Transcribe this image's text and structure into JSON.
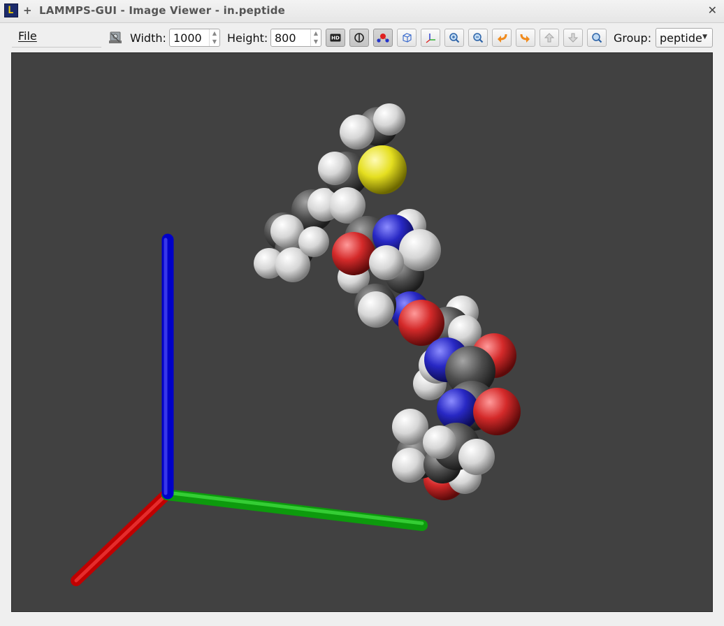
{
  "window": {
    "title": "LAMMPS-GUI - Image Viewer - in.peptide",
    "app_icon": "lammps-app-icon",
    "close_symbol": "✕"
  },
  "menu": {
    "file_label": "File"
  },
  "toolbar": {
    "width_label": "Width:",
    "width_value": "1000",
    "height_label": "Height:",
    "height_value": "800",
    "group_label": "Group:",
    "group_value": "peptide",
    "buttons": [
      "save-image-icon",
      "hd-quality-icon",
      "toggle-ssao-icon",
      "toggle-vdw-icon",
      "toggle-box-icon",
      "toggle-axes-icon",
      "zoom-in-icon",
      "zoom-out-icon",
      "rotate-left-icon",
      "rotate-right-icon",
      "rotate-up-icon",
      "rotate-down-icon",
      "reset-view-icon"
    ]
  },
  "scene": {
    "background": "#414141",
    "axes": {
      "x_color": "#dd0000",
      "y_color": "#00bb00",
      "z_color": "#0000dd"
    },
    "atom_colors": {
      "carbon": "#505050",
      "hydrogen": "#e6e6e6",
      "oxygen": "#d42a2a",
      "nitrogen": "#2a2ac8",
      "sulfur": "#e5e01e"
    }
  }
}
